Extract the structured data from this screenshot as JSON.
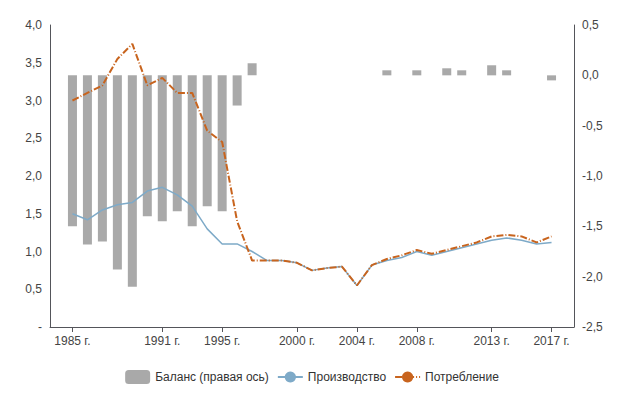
{
  "chart_data": {
    "type": "bar",
    "x": [
      1985,
      1986,
      1987,
      1988,
      1989,
      1990,
      1991,
      1992,
      1993,
      1994,
      1995,
      1996,
      1997,
      1998,
      1999,
      2000,
      2001,
      2002,
      2003,
      2004,
      2005,
      2006,
      2007,
      2008,
      2009,
      2010,
      2011,
      2012,
      2013,
      2014,
      2015,
      2016,
      2017
    ],
    "series": [
      {
        "name": "Баланс (правая ось)",
        "type": "bar",
        "axis": "y2",
        "color": "#a0a0a0",
        "values": [
          -1.5,
          -1.68,
          -1.65,
          -1.93,
          -2.1,
          -1.4,
          -1.45,
          -1.35,
          -1.5,
          -1.3,
          -1.35,
          -0.3,
          0.12,
          0.0,
          0.0,
          0.0,
          0.0,
          0.0,
          0.0,
          0.0,
          0.0,
          0.05,
          0.0,
          0.05,
          0.0,
          0.07,
          0.05,
          0.0,
          0.1,
          0.05,
          0.0,
          0.0,
          -0.05
        ]
      },
      {
        "name": "Производство",
        "type": "line",
        "color": "#7eaac8",
        "line_style": "solid",
        "values": [
          1.5,
          1.42,
          1.55,
          1.62,
          1.65,
          1.8,
          1.85,
          1.75,
          1.6,
          1.3,
          1.1,
          1.1,
          1.0,
          0.88,
          0.88,
          0.85,
          0.75,
          0.78,
          0.8,
          0.55,
          0.82,
          0.88,
          0.92,
          1.0,
          0.95,
          1.0,
          1.05,
          1.1,
          1.15,
          1.18,
          1.15,
          1.1,
          1.12
        ]
      },
      {
        "name": "Потребление",
        "type": "line",
        "color": "#c8641e",
        "line_style": "dashdot",
        "values": [
          3.0,
          3.1,
          3.2,
          3.55,
          3.75,
          3.2,
          3.3,
          3.1,
          3.1,
          2.6,
          2.45,
          1.4,
          0.88,
          0.88,
          0.88,
          0.85,
          0.75,
          0.78,
          0.8,
          0.55,
          0.82,
          0.9,
          0.95,
          1.02,
          0.97,
          1.02,
          1.07,
          1.12,
          1.2,
          1.22,
          1.2,
          1.12,
          1.2
        ]
      }
    ],
    "xlim": [
      1983.5,
      2018.5
    ],
    "xticks": [
      {
        "value": 1985,
        "label": "1985 г."
      },
      {
        "value": 1991,
        "label": "1991 г."
      },
      {
        "value": 1995,
        "label": "1995 г."
      },
      {
        "value": 2000,
        "label": "2000 г."
      },
      {
        "value": 2004,
        "label": "2004 г."
      },
      {
        "value": 2008,
        "label": "2008 г."
      },
      {
        "value": 2013,
        "label": "2013 г."
      },
      {
        "value": 2017,
        "label": "2017 г."
      }
    ],
    "ylim": [
      0.0,
      4.0
    ],
    "yticks": [
      {
        "value": 0,
        "label": "-"
      },
      {
        "value": 0.5,
        "label": "0,5"
      },
      {
        "value": 1.0,
        "label": "1,0"
      },
      {
        "value": 1.5,
        "label": "1,5"
      },
      {
        "value": 2.0,
        "label": "2,0"
      },
      {
        "value": 2.5,
        "label": "2,5"
      },
      {
        "value": 3.0,
        "label": "3,0"
      },
      {
        "value": 3.5,
        "label": "3,5"
      },
      {
        "value": 4.0,
        "label": "4,0"
      }
    ],
    "y2lim": [
      -2.5,
      0.5
    ],
    "y2ticks": [
      {
        "value": -2.5,
        "label": "-2,5"
      },
      {
        "value": -2.0,
        "label": "-2,0"
      },
      {
        "value": -1.5,
        "label": "-1,5"
      },
      {
        "value": -1.0,
        "label": "-1,0"
      },
      {
        "value": -0.5,
        "label": "-0,5"
      },
      {
        "value": 0.0,
        "label": "0,0"
      },
      {
        "value": 0.5,
        "label": "0,5"
      }
    ],
    "grid": false,
    "legend": "bottom"
  }
}
